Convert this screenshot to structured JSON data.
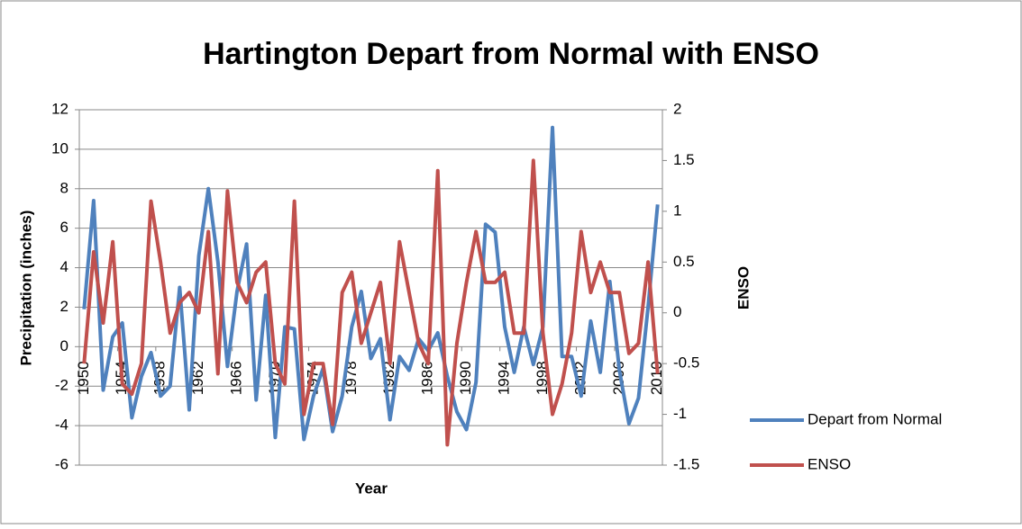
{
  "chart_data": {
    "type": "line",
    "title": "Hartington Depart from Normal with ENSO",
    "x_label": "Year",
    "y_label": "Precipitation (inches)",
    "y2_label": "ENSO",
    "categories": [
      "1950",
      null,
      null,
      null,
      "1954",
      null,
      null,
      null,
      "1958",
      null,
      null,
      null,
      "1962",
      null,
      null,
      null,
      "1966",
      null,
      null,
      null,
      "1970",
      null,
      null,
      null,
      "1974",
      null,
      null,
      null,
      "1978",
      null,
      null,
      null,
      "1982",
      null,
      null,
      null,
      "1986",
      null,
      null,
      null,
      "1990",
      null,
      null,
      null,
      "1994",
      null,
      null,
      null,
      "1998",
      null,
      null,
      null,
      "2002",
      null,
      null,
      null,
      "2006",
      null,
      null,
      null,
      "2010"
    ],
    "series": [
      {
        "name": "Depart from Normal",
        "color": "#4f81bd",
        "values": [
          1.9,
          7.4,
          -2.2,
          0.5,
          1.2,
          -3.6,
          -1.5,
          -0.3,
          -2.5,
          -2.0,
          3.0,
          -3.2,
          4.6,
          8.0,
          4.3,
          -1.0,
          2.8,
          5.2,
          -2.7,
          2.6,
          -4.6,
          1.0,
          0.9,
          -4.7,
          -2.5,
          -1.1,
          -4.3,
          -2.5,
          1.0,
          2.8,
          -0.6,
          0.4,
          -3.7,
          -0.5,
          -1.2,
          0.4,
          -0.2,
          0.7,
          -1.5,
          -3.3,
          -4.2,
          -1.8,
          6.2,
          5.8,
          1.0,
          -1.3,
          1.0,
          -0.9,
          1.0,
          11.1,
          -0.5,
          -0.5,
          -2.5,
          1.3,
          -1.3,
          3.3,
          -1.2,
          -3.9,
          -2.6,
          2.0,
          7.2
        ]
      },
      {
        "name": "ENSO",
        "color": "#c0504d",
        "axis": "y2",
        "values": [
          -0.5,
          0.6,
          -0.1,
          0.7,
          -0.7,
          -0.8,
          -0.5,
          1.1,
          0.5,
          -0.2,
          0.1,
          0.2,
          0.0,
          0.8,
          -0.6,
          1.2,
          0.3,
          0.1,
          0.4,
          0.5,
          -0.5,
          -0.7,
          1.1,
          -1.0,
          -0.5,
          -0.5,
          -1.1,
          0.2,
          0.4,
          -0.3,
          0.0,
          0.3,
          -0.5,
          0.7,
          0.2,
          -0.3,
          -0.5,
          1.4,
          -1.3,
          -0.3,
          0.3,
          0.8,
          0.3,
          0.3,
          0.4,
          -0.2,
          -0.2,
          1.5,
          -0.2,
          -1.0,
          -0.7,
          -0.2,
          0.8,
          0.2,
          0.5,
          0.2,
          0.2,
          -0.4,
          -0.3,
          0.5,
          -0.6
        ]
      }
    ],
    "ylim": [
      -6,
      12
    ],
    "yticks": [
      -6,
      -4,
      -2,
      0,
      2,
      4,
      6,
      8,
      10,
      12
    ],
    "y2lim": [
      -1.5,
      2
    ],
    "y2ticks": [
      -1.5,
      -1,
      -0.5,
      0,
      0.5,
      1,
      1.5,
      2
    ],
    "grid": true,
    "legend": "right"
  }
}
